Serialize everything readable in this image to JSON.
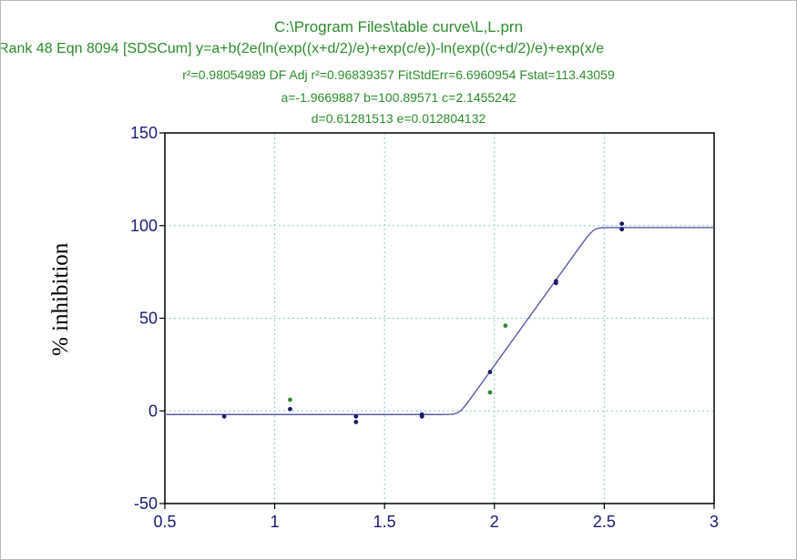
{
  "header": {
    "line1": "C:\\Program Files\\table curve\\L,L.prn",
    "line2": "Rank 48  Eqn 8094  [SDSCum] y=a+b(2e(ln(exp((x+d/2)/e)+exp(c/e))-ln(exp((c+d/2)/e)+exp(x/e",
    "line3": "r²=0.98054989  DF Adj r²=0.96839357  FitStdErr=6.6960954  Fstat=113.43059",
    "line4": "a=-1.9669887 b=100.89571 c=2.1455242",
    "line5": "d=0.61281513 e=0.012804132"
  },
  "colors": {
    "header_text": "#2e8b2e",
    "curve": "#5a5aa8",
    "point_primary": "#1a1a6a",
    "point_secondary": "#2e8b2e",
    "grid": "#8fc9c9",
    "tick_text": "#1a1a7a"
  },
  "chart_data": {
    "type": "scatter",
    "title": "C:\\Program Files\\table curve\\L,L.prn",
    "xlabel": "",
    "ylabel": "% inhibition",
    "xlim": [
      0.5,
      3
    ],
    "ylim": [
      -50,
      150
    ],
    "xticks": [
      0.5,
      1,
      1.5,
      2,
      2.5,
      3
    ],
    "yticks": [
      -50,
      0,
      50,
      100,
      150
    ],
    "xtick_labels": [
      "0.5",
      "1",
      "1.5",
      "2",
      "2.5",
      "3"
    ],
    "ytick_labels": [
      "-50",
      "0",
      "50",
      "100",
      "150"
    ],
    "grid": true,
    "fit": {
      "a": -1.9669887,
      "b": 100.89571,
      "c": 2.1455242,
      "d": 0.61281513,
      "e": 0.012804132
    },
    "series": [
      {
        "color": "#1a1a6a",
        "x": [
          0.77,
          1.07,
          1.37,
          1.37,
          1.67,
          1.67,
          1.98,
          2.28,
          2.28,
          2.58,
          2.58
        ],
        "y": [
          -3,
          1,
          -3,
          -6,
          -2,
          -3,
          21,
          70,
          69,
          101,
          98
        ]
      },
      {
        "color": "#2e8b2e",
        "x": [
          1.07,
          1.98,
          2.05
        ],
        "y": [
          6,
          10,
          46
        ]
      }
    ]
  }
}
